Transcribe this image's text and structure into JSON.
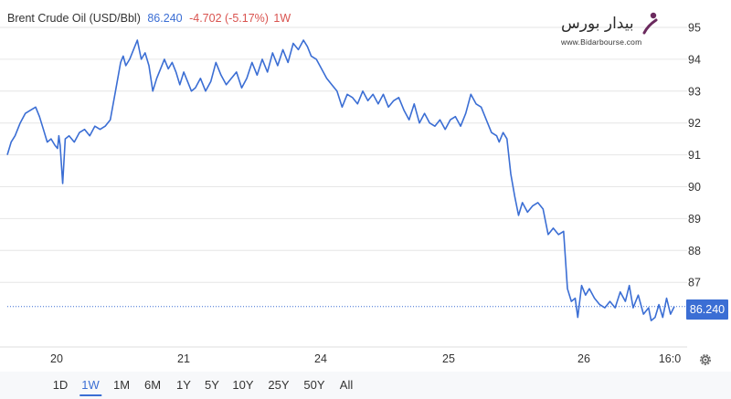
{
  "header": {
    "instrument": "Brent Crude Oil (USD/Bbl)",
    "price": "86.240",
    "change": "-4.702 (-5.17%)",
    "period": "1W"
  },
  "watermark": {
    "text_fa": "بیدار بورس",
    "text_en": "www.Bidarbourse.com"
  },
  "price_tag": "86.240",
  "colors": {
    "line": "#3b6ed4",
    "negative": "#d9534f",
    "grid": "#e6e6e6",
    "logo_accent": "#6b2a5e"
  },
  "ranges": [
    {
      "label": "1D",
      "active": false
    },
    {
      "label": "1W",
      "active": true
    },
    {
      "label": "1M",
      "active": false
    },
    {
      "label": "6M",
      "active": false
    },
    {
      "label": "1Y",
      "active": false
    },
    {
      "label": "5Y",
      "active": false
    },
    {
      "label": "10Y",
      "active": false
    },
    {
      "label": "25Y",
      "active": false
    },
    {
      "label": "50Y",
      "active": false
    },
    {
      "label": "All",
      "active": false
    }
  ],
  "settings_icon": "gear-icon",
  "chart_data": {
    "type": "line",
    "title": "Brent Crude Oil (USD/Bbl)",
    "xlabel": "",
    "ylabel": "",
    "ylim": [
      85.2,
      95.5
    ],
    "y_ticks": [
      95,
      94,
      93,
      92,
      91,
      90,
      89,
      88,
      87
    ],
    "x_ticks": [
      "20",
      "21",
      "24",
      "25",
      "26",
      "16:0"
    ],
    "y_axis_position": "right",
    "grid": "horizontal",
    "last_price": 86.24,
    "series": [
      {
        "name": "",
        "points": [
          [
            0.0,
            91.0
          ],
          [
            0.3,
            91.4
          ],
          [
            0.6,
            91.6
          ],
          [
            1.0,
            92.0
          ],
          [
            1.4,
            92.3
          ],
          [
            1.8,
            92.4
          ],
          [
            2.2,
            92.5
          ],
          [
            2.5,
            92.2
          ],
          [
            2.8,
            91.8
          ],
          [
            3.1,
            91.4
          ],
          [
            3.4,
            91.5
          ],
          [
            3.7,
            91.3
          ],
          [
            3.9,
            91.2
          ],
          [
            4.0,
            91.6
          ],
          [
            4.1,
            91.3
          ],
          [
            4.3,
            90.1
          ],
          [
            4.5,
            91.5
          ],
          [
            4.8,
            91.6
          ],
          [
            5.2,
            91.4
          ],
          [
            5.6,
            91.7
          ],
          [
            6.0,
            91.8
          ],
          [
            6.4,
            91.6
          ],
          [
            6.8,
            91.9
          ],
          [
            7.2,
            91.8
          ],
          [
            7.6,
            91.9
          ],
          [
            8.0,
            92.1
          ],
          [
            8.4,
            93.0
          ],
          [
            8.8,
            93.9
          ],
          [
            9.0,
            94.1
          ],
          [
            9.2,
            93.8
          ],
          [
            9.5,
            94.0
          ],
          [
            9.8,
            94.3
          ],
          [
            10.1,
            94.6
          ],
          [
            10.4,
            94.0
          ],
          [
            10.7,
            94.2
          ],
          [
            11.0,
            93.8
          ],
          [
            11.3,
            93.0
          ],
          [
            11.6,
            93.4
          ],
          [
            11.9,
            93.7
          ],
          [
            12.2,
            94.0
          ],
          [
            12.5,
            93.7
          ],
          [
            12.8,
            93.9
          ],
          [
            13.1,
            93.6
          ],
          [
            13.4,
            93.2
          ],
          [
            13.7,
            93.6
          ],
          [
            14.0,
            93.3
          ],
          [
            14.3,
            93.0
          ],
          [
            14.6,
            93.1
          ],
          [
            15.0,
            93.4
          ],
          [
            15.4,
            93.0
          ],
          [
            15.8,
            93.3
          ],
          [
            16.2,
            93.9
          ],
          [
            16.6,
            93.5
          ],
          [
            17.0,
            93.2
          ],
          [
            17.4,
            93.4
          ],
          [
            17.8,
            93.6
          ],
          [
            18.2,
            93.1
          ],
          [
            18.6,
            93.4
          ],
          [
            19.0,
            93.9
          ],
          [
            19.4,
            93.5
          ],
          [
            19.8,
            94.0
          ],
          [
            20.2,
            93.6
          ],
          [
            20.6,
            94.2
          ],
          [
            21.0,
            93.8
          ],
          [
            21.4,
            94.3
          ],
          [
            21.8,
            93.9
          ],
          [
            22.2,
            94.5
          ],
          [
            22.6,
            94.3
          ],
          [
            23.0,
            94.6
          ],
          [
            23.3,
            94.4
          ],
          [
            23.6,
            94.1
          ],
          [
            24.0,
            94.0
          ],
          [
            24.4,
            93.7
          ],
          [
            24.8,
            93.4
          ],
          [
            25.2,
            93.2
          ],
          [
            25.6,
            93.0
          ],
          [
            26.0,
            92.5
          ],
          [
            26.4,
            92.9
          ],
          [
            26.8,
            92.8
          ],
          [
            27.2,
            92.6
          ],
          [
            27.6,
            93.0
          ],
          [
            28.0,
            92.7
          ],
          [
            28.4,
            92.9
          ],
          [
            28.8,
            92.6
          ],
          [
            29.2,
            92.9
          ],
          [
            29.6,
            92.5
          ],
          [
            30.0,
            92.7
          ],
          [
            30.4,
            92.8
          ],
          [
            30.8,
            92.4
          ],
          [
            31.2,
            92.1
          ],
          [
            31.6,
            92.6
          ],
          [
            32.0,
            92.0
          ],
          [
            32.4,
            92.3
          ],
          [
            32.8,
            92.0
          ],
          [
            33.2,
            91.9
          ],
          [
            33.6,
            92.1
          ],
          [
            34.0,
            91.8
          ],
          [
            34.4,
            92.1
          ],
          [
            34.8,
            92.2
          ],
          [
            35.2,
            91.9
          ],
          [
            35.6,
            92.3
          ],
          [
            36.0,
            92.9
          ],
          [
            36.4,
            92.6
          ],
          [
            36.8,
            92.5
          ],
          [
            37.2,
            92.1
          ],
          [
            37.6,
            91.7
          ],
          [
            38.0,
            91.6
          ],
          [
            38.2,
            91.4
          ],
          [
            38.5,
            91.7
          ],
          [
            38.8,
            91.5
          ],
          [
            39.1,
            90.4
          ],
          [
            39.4,
            89.7
          ],
          [
            39.7,
            89.1
          ],
          [
            40.0,
            89.5
          ],
          [
            40.4,
            89.2
          ],
          [
            40.8,
            89.4
          ],
          [
            41.2,
            89.5
          ],
          [
            41.6,
            89.3
          ],
          [
            42.0,
            88.5
          ],
          [
            42.4,
            88.7
          ],
          [
            42.8,
            88.5
          ],
          [
            43.2,
            88.6
          ],
          [
            43.5,
            86.8
          ],
          [
            43.8,
            86.4
          ],
          [
            44.1,
            86.5
          ],
          [
            44.3,
            85.9
          ],
          [
            44.6,
            86.9
          ],
          [
            44.9,
            86.6
          ],
          [
            45.2,
            86.8
          ],
          [
            45.6,
            86.5
          ],
          [
            46.0,
            86.3
          ],
          [
            46.4,
            86.2
          ],
          [
            46.8,
            86.4
          ],
          [
            47.2,
            86.2
          ],
          [
            47.6,
            86.7
          ],
          [
            48.0,
            86.4
          ],
          [
            48.3,
            86.9
          ],
          [
            48.6,
            86.2
          ],
          [
            49.0,
            86.6
          ],
          [
            49.4,
            86.0
          ],
          [
            49.8,
            86.2
          ],
          [
            50.0,
            85.8
          ],
          [
            50.3,
            85.9
          ],
          [
            50.6,
            86.3
          ],
          [
            50.9,
            85.9
          ],
          [
            51.2,
            86.5
          ],
          [
            51.5,
            86.0
          ],
          [
            51.8,
            86.24
          ]
        ]
      }
    ]
  }
}
